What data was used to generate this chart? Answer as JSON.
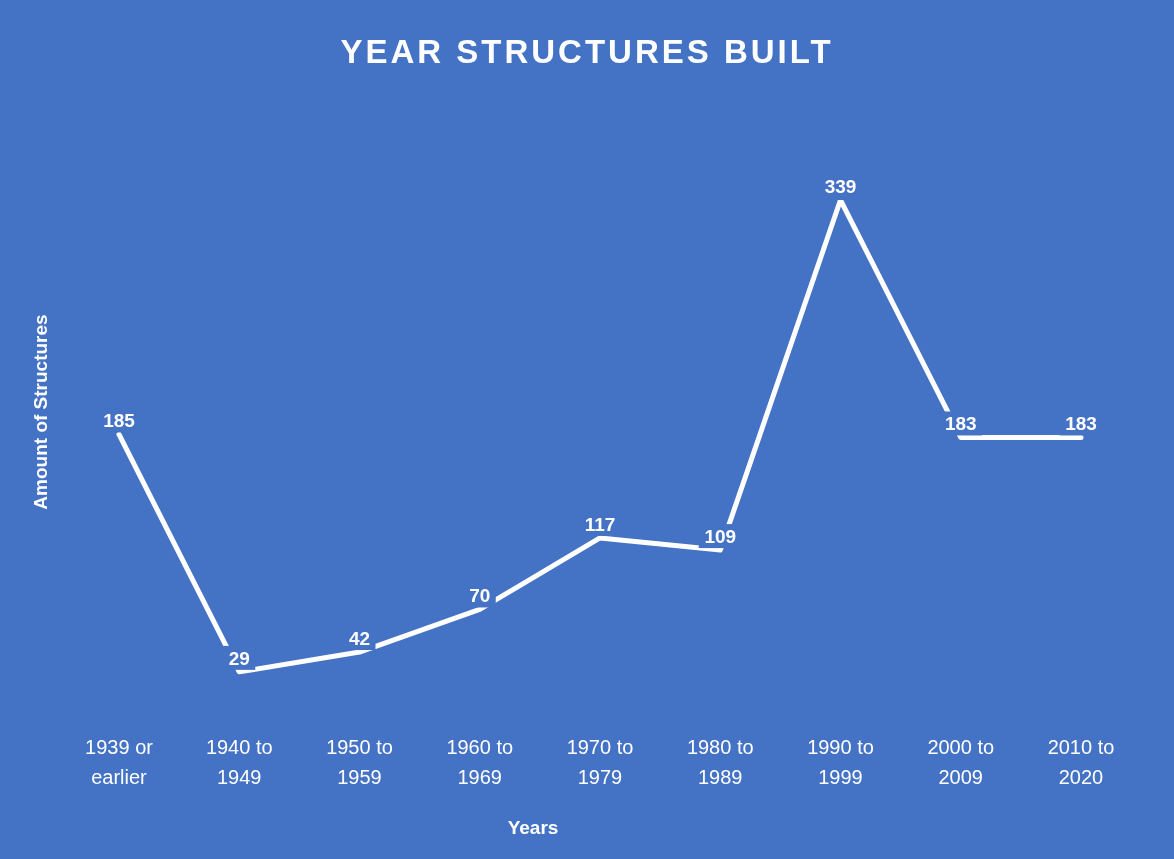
{
  "chart_data": {
    "type": "line",
    "title": "YEAR STRUCTURES BUILT",
    "xlabel": "Years",
    "ylabel": "Amount of Structures",
    "categories": [
      "1939 or earlier",
      "1940 to 1949",
      "1950 to 1959",
      "1960 to 1969",
      "1970 to 1979",
      "1980 to 1989",
      "1990 to 1999",
      "2000 to 2009",
      "2010 to 2020"
    ],
    "series": [
      {
        "color": "#ffffff",
        "values": [
          185,
          29,
          42,
          70,
          117,
          109,
          339,
          183,
          183
        ]
      }
    ],
    "tick_labels": "x",
    "data_labels": true,
    "marker": "none",
    "line_style": "solid",
    "grid": false,
    "legend": false
  }
}
